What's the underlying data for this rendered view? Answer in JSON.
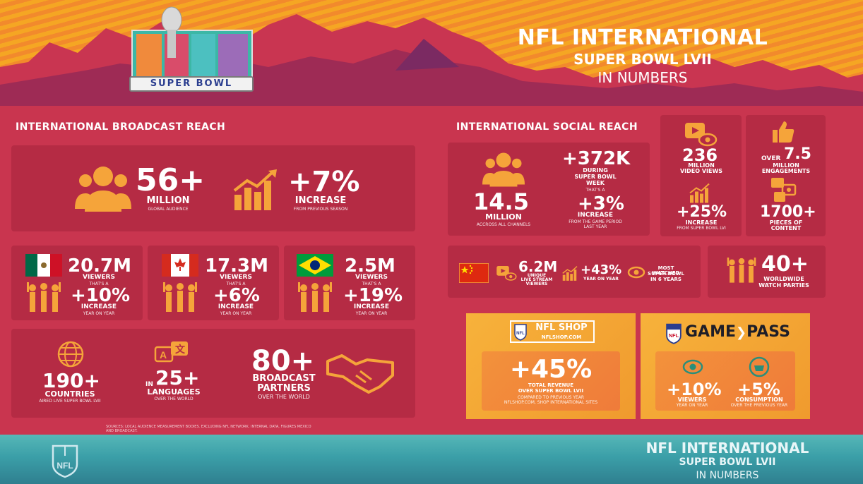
{
  "header": {
    "logo_roman": "LVII",
    "logo_text": "SUPER BOWL",
    "title_1": "NFL INTERNATIONAL",
    "title_2": "SUPER BOWL LVII",
    "title_3": "IN NUMBERS"
  },
  "broadcast": {
    "section_title": "INTERNATIONAL BROADCAST REACH",
    "audience": {
      "value": "56+",
      "unit": "MILLION",
      "sub": "GLOBAL AUDIENCE"
    },
    "increase": {
      "value": "+7%",
      "unit": "INCREASE",
      "sub": "FROM PREVIOUS SEASON"
    },
    "countries": [
      {
        "viewers": "20.7M",
        "viewers_label": "VIEWERS",
        "small": "THAT'S A",
        "change": "+10%",
        "change_label": "INCREASE",
        "change_sub": "YEAR ON YEAR"
      },
      {
        "viewers": "17.3M",
        "viewers_label": "VIEWERS",
        "small": "THAT'S A",
        "change": "+6%",
        "change_label": "INCREASE",
        "change_sub": "YEAR ON YEAR"
      },
      {
        "viewers": "2.5M",
        "viewers_label": "VIEWERS",
        "small": "THAT'S A",
        "change": "+19%",
        "change_label": "INCREASE",
        "change_sub": "YEAR ON YEAR"
      }
    ],
    "countries_aired": {
      "value": "190+",
      "label": "COUNTRIES",
      "sub": "AIRED LIVE SUPER BOWL LVII"
    },
    "languages": {
      "prefix": "IN",
      "value": "25+",
      "label": "LANGUAGES",
      "sub": "OVER THE WORLD"
    },
    "partners": {
      "value": "80+",
      "label_1": "BROADCAST",
      "label_2": "PARTNERS",
      "sub": "OVER THE WORLD"
    },
    "source": "SOURCES: LOCAL AUDIENCE MEASUREMENT BODIES. EXCLUDING NFL NETWORK. INTERNAL DATA, FIGURES MEXICO AND BROADCAST."
  },
  "social": {
    "section_title": "INTERNATIONAL SOCIAL REACH",
    "accounts": {
      "value": "14.5",
      "unit": "MILLION",
      "sub": "ACCROSS ALL CHANNELS"
    },
    "week": {
      "value": "+372K",
      "label_1": "DURING",
      "label_2": "SUPER BOWL",
      "label_3": "WEEK",
      "small": "THAT'S A"
    },
    "week_change": {
      "value": "+3%",
      "label": "INCREASE",
      "sub_1": "FROM THE GAME PERIOD",
      "sub_2": "LAST YEAR"
    },
    "video_views": {
      "value": "236",
      "label_1": "MILLION",
      "label_2": "VIDEO VIEWS"
    },
    "video_change": {
      "value": "+25%",
      "label": "INCREASE",
      "sub": "FROM SUPER BOWL LVI"
    },
    "engagements": {
      "prefix": "OVER",
      "value": "7.5",
      "label_1": "MILLION",
      "label_2": "ENGAGEMENTS"
    },
    "content": {
      "value": "1700+",
      "label_1": "PIECES OF",
      "label_2": "CONTENT"
    },
    "china": {
      "streams": "6.2M",
      "streams_label_1": "UNIQUE",
      "streams_label_2": "LIVE STREAM",
      "streams_label_3": "VIEWERS",
      "yoy": "+43%",
      "yoy_label": "YEAR ON YEAR",
      "watched_1": "MOST WATCHED",
      "watched_2": "SUPER BOWL",
      "watched_3": "IN 6 YEARS"
    },
    "parties": {
      "value": "40+",
      "label_1": "WORLDWIDE",
      "label_2": "WATCH PARTIES"
    }
  },
  "shop": {
    "brand": "NFL SHOP",
    "url": "NFLSHOP.COM",
    "value": "+45%",
    "label_1": "TOTAL REVENUE",
    "label_2": "OVER SUPER BOWL LVII",
    "sub_1": "COMPARED TO PREVIOUS YEAR",
    "sub_2": "NFLSHOP.COM, SHOP INTERNATIONAL SITES"
  },
  "gamepass": {
    "brand_1": "GAME",
    "brand_2": "PASS",
    "viewers": {
      "value": "+10%",
      "label": "VIEWERS",
      "sub": "YEAR ON YEAR"
    },
    "consumption": {
      "value": "+5%",
      "label": "CONSUMPTION",
      "sub": "OVER THE PREVIOUS YEAR"
    }
  },
  "footer": {
    "nfl": "NFL",
    "title_1": "NFL INTERNATIONAL",
    "title_2": "SUPER BOWL LVII",
    "title_3": "IN NUMBERS"
  },
  "colors": {
    "background": "#c9354f",
    "panel": "#b52b44",
    "accent_orange": "#f5a43a",
    "header_orange": "#f5a623",
    "footer_teal": "#3b9fa8"
  }
}
